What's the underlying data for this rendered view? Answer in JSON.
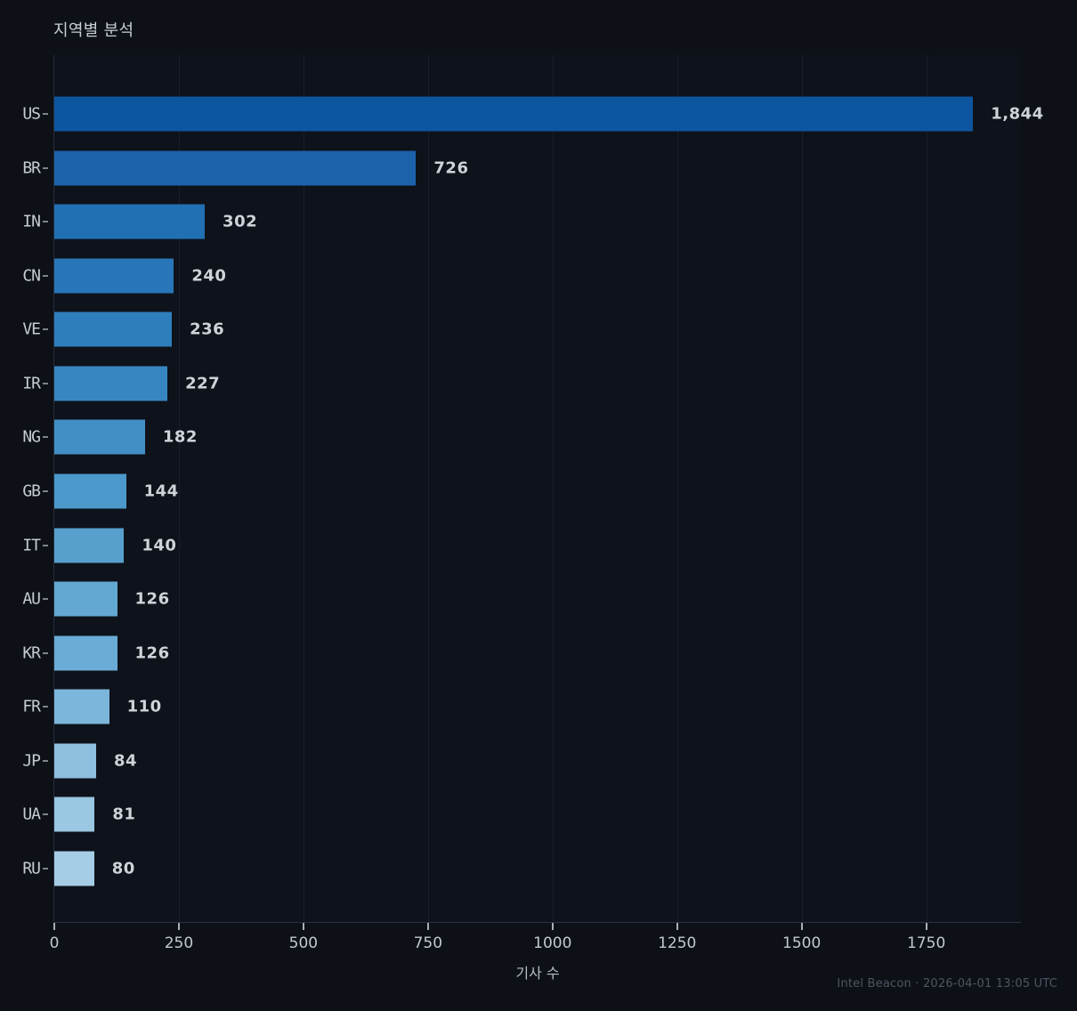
{
  "chart_data": {
    "type": "bar",
    "orientation": "horizontal",
    "title": "지역별 분석",
    "xlabel": "기사 수",
    "ylabel": "",
    "categories": [
      "US",
      "BR",
      "IN",
      "CN",
      "VE",
      "IR",
      "NG",
      "GB",
      "IT",
      "AU",
      "KR",
      "FR",
      "JP",
      "UA",
      "RU"
    ],
    "values": [
      1844,
      726,
      302,
      240,
      236,
      227,
      182,
      144,
      140,
      126,
      126,
      110,
      84,
      81,
      80
    ],
    "value_labels": [
      "1,844",
      "726",
      "302",
      "240",
      "236",
      "227",
      "182",
      "144",
      "140",
      "126",
      "126",
      "110",
      "84",
      "81",
      "80"
    ],
    "xlim": [
      0,
      1940
    ],
    "x_ticks": [
      0,
      250,
      500,
      750,
      1000,
      1250,
      1500,
      1750
    ],
    "grid": "vertical-only",
    "legend": "none",
    "bar_colors": [
      "#0e559f",
      "#1b62ab",
      "#2270b4",
      "#2876b9",
      "#2f7ebc",
      "#3886c1",
      "#428fc5",
      "#4c98ca",
      "#57a0ce",
      "#63a8d2",
      "#6aacd5",
      "#7cb6da",
      "#8dbfde",
      "#9ac7e1",
      "#a5cde5"
    ],
    "background_color": "#0d1117",
    "text_color": "#c6cad1"
  },
  "footer": {
    "text": "Intel Beacon · 2026-04-01 13:05 UTC"
  }
}
